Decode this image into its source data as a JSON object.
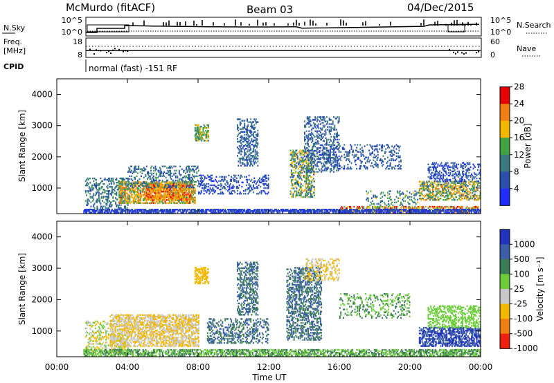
{
  "header": {
    "station": "McMurdo (fitACF)",
    "beam": "Beam 03",
    "date": "04/Dec/2015"
  },
  "sky_panel": {
    "left_label": "N.Sky",
    "right_label": "N.Search",
    "left_ticks": [
      "10^5",
      "10^0"
    ],
    "right_ticks": [
      "10^5",
      "10^0"
    ]
  },
  "freq_panel": {
    "left_label_top": "Freq.",
    "left_label_bottom": "[MHz]",
    "right_label": "Nave",
    "left_ticks": [
      "18",
      "8"
    ],
    "right_ticks": [
      "60",
      "0"
    ]
  },
  "cpid": {
    "label": "CPID",
    "program": "normal (fast) -151 RF"
  },
  "chart_data": [
    {
      "type": "heatmap",
      "name": "power",
      "ylabel": "Slant Range [km]",
      "ylim": [
        180,
        4500
      ],
      "yticks": [
        "1000",
        "2000",
        "3000",
        "4000"
      ],
      "ytick_values": [
        1000,
        2000,
        3000,
        4000
      ],
      "colorbar_label": "Power [dB]",
      "colorbar_ticks": [
        "4",
        "8",
        "12",
        "16",
        "20",
        "24",
        "28"
      ],
      "colorbar_colors": [
        "#1f2dff",
        "#2a4fa8",
        "#3a7a7f",
        "#43a043",
        "#f2b800",
        "#ef7f12",
        "#e60000"
      ],
      "clim": [
        0,
        30
      ],
      "blobs": [
        {
          "t": [
            1.6,
            4.0
          ],
          "r": [
            300,
            1300
          ],
          "v": [
            6,
            14
          ],
          "d": 0.3
        },
        {
          "t": [
            3.5,
            7.8
          ],
          "r": [
            500,
            1200
          ],
          "v": [
            12,
            26
          ],
          "d": 0.55
        },
        {
          "t": [
            5.0,
            7.5
          ],
          "r": [
            600,
            1100
          ],
          "v": [
            18,
            28
          ],
          "d": 0.55
        },
        {
          "t": [
            4.0,
            8.0
          ],
          "r": [
            1000,
            1700
          ],
          "v": [
            4,
            14
          ],
          "d": 0.25
        },
        {
          "t": [
            7.8,
            8.6
          ],
          "r": [
            2500,
            3000
          ],
          "v": [
            10,
            20
          ],
          "d": 0.55
        },
        {
          "t": [
            8.0,
            12.0
          ],
          "r": [
            800,
            1400
          ],
          "v": [
            2,
            10
          ],
          "d": 0.25
        },
        {
          "t": [
            10.2,
            11.4
          ],
          "r": [
            1700,
            3200
          ],
          "v": [
            4,
            12
          ],
          "d": 0.35
        },
        {
          "t": [
            13.2,
            14.6
          ],
          "r": [
            700,
            2200
          ],
          "v": [
            6,
            22
          ],
          "d": 0.4
        },
        {
          "t": [
            14.0,
            16.0
          ],
          "r": [
            1500,
            3300
          ],
          "v": [
            4,
            12
          ],
          "d": 0.28
        },
        {
          "t": [
            15.0,
            19.5
          ],
          "r": [
            1600,
            2400
          ],
          "v": [
            4,
            10
          ],
          "d": 0.18
        },
        {
          "t": [
            17.5,
            20.5
          ],
          "r": [
            250,
            900
          ],
          "v": [
            6,
            18
          ],
          "d": 0.2
        },
        {
          "t": [
            20.5,
            24.0
          ],
          "r": [
            600,
            1200
          ],
          "v": [
            8,
            24
          ],
          "d": 0.45
        },
        {
          "t": [
            21.0,
            24.0
          ],
          "r": [
            1200,
            1800
          ],
          "v": [
            2,
            10
          ],
          "d": 0.3
        },
        {
          "t": [
            16.0,
            24.0
          ],
          "r": [
            200,
            420
          ],
          "v": [
            14,
            30
          ],
          "d": 0.45
        },
        {
          "t": [
            1.5,
            24.0
          ],
          "r": [
            200,
            300
          ],
          "v": [
            2,
            8
          ],
          "d": 0.7
        }
      ]
    },
    {
      "type": "heatmap",
      "name": "velocity",
      "ylabel": "Slant Range [km]",
      "ylim": [
        180,
        4500
      ],
      "yticks": [
        "1000",
        "2000",
        "3000",
        "4000"
      ],
      "ytick_values": [
        1000,
        2000,
        3000,
        4000
      ],
      "colorbar_label": "Velocity [m s⁻¹]",
      "colorbar_ticks": [
        "1000",
        "500",
        "100",
        "25",
        "-25",
        "-100",
        "-500",
        "-1000"
      ],
      "colorbar_colors": [
        "#2233bb",
        "#3a5fa8",
        "#3a7a55",
        "#6ccc3a",
        "#c8c8c8",
        "#f2b800",
        "#ee7f12",
        "#ee2010"
      ],
      "clim": [
        0,
        8
      ],
      "blobs": [
        {
          "t": [
            1.6,
            4.0
          ],
          "r": [
            300,
            1300
          ],
          "v": [
            2,
            5
          ],
          "d": 0.3
        },
        {
          "t": [
            3.0,
            8.0
          ],
          "r": [
            500,
            1500
          ],
          "v": [
            2,
            4
          ],
          "d": 0.55
        },
        {
          "t": [
            7.8,
            8.6
          ],
          "r": [
            2500,
            3000
          ],
          "v": [
            2,
            3
          ],
          "d": 0.55
        },
        {
          "t": [
            8.5,
            12.0
          ],
          "r": [
            600,
            1400
          ],
          "v": [
            5,
            7
          ],
          "d": 0.3
        },
        {
          "t": [
            10.2,
            11.4
          ],
          "r": [
            1500,
            3200
          ],
          "v": [
            5,
            7
          ],
          "d": 0.4
        },
        {
          "t": [
            13.0,
            15.0
          ],
          "r": [
            700,
            3000
          ],
          "v": [
            5,
            7
          ],
          "d": 0.4
        },
        {
          "t": [
            14.0,
            16.0
          ],
          "r": [
            2600,
            3300
          ],
          "v": [
            2,
            4
          ],
          "d": 0.3
        },
        {
          "t": [
            16.0,
            20.0
          ],
          "r": [
            1400,
            2200
          ],
          "v": [
            4,
            6
          ],
          "d": 0.18
        },
        {
          "t": [
            20.5,
            24.0
          ],
          "r": [
            500,
            1100
          ],
          "v": [
            6,
            8
          ],
          "d": 0.55
        },
        {
          "t": [
            21.0,
            24.0
          ],
          "r": [
            1100,
            1800
          ],
          "v": [
            4,
            5
          ],
          "d": 0.35
        },
        {
          "t": [
            1.5,
            24.0
          ],
          "r": [
            200,
            420
          ],
          "v": [
            4,
            6
          ],
          "d": 0.55
        }
      ]
    }
  ],
  "time_axis": {
    "xlabel": "Time UT",
    "ticks": [
      "00:00",
      "04:00",
      "08:00",
      "12:00",
      "16:00",
      "20:00",
      "00:00"
    ],
    "range_hours": [
      0,
      24
    ]
  }
}
